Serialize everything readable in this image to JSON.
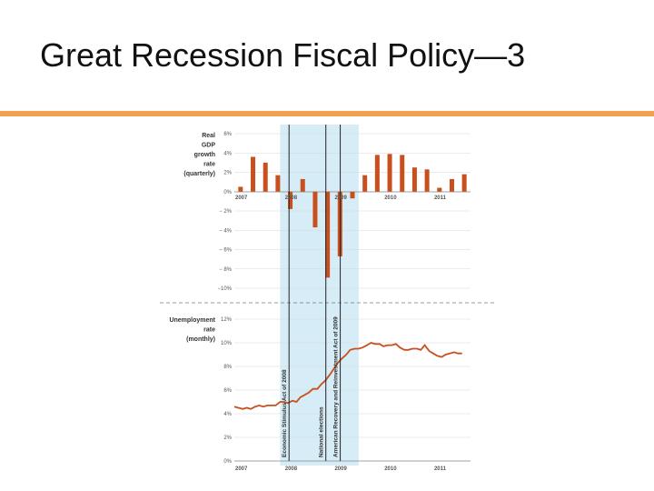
{
  "slide": {
    "title": "Great Recession Fiscal Policy—3"
  },
  "colors": {
    "accent": "#f0a050",
    "bar": "#c8501e",
    "line": "#c8501e",
    "shade": "#d6ecf6"
  },
  "chart_data": [
    {
      "type": "bar",
      "ylabel": [
        "Real",
        "GDP",
        "growth",
        "rate",
        "(quarterly)"
      ],
      "ylim": [
        -10,
        6
      ],
      "yticks": [
        "6%",
        "4%",
        "2%",
        "0%",
        "− 2%",
        "− 4%",
        "− 6%",
        "− 8%",
        "−10%"
      ],
      "xticks": [
        "2007",
        "2008",
        "2009",
        "2010",
        "2011"
      ],
      "x_start": 2007.0,
      "x_end": 2011.75,
      "recession_shade": [
        2007.92,
        2009.5
      ],
      "events": [
        {
          "label": "Economic Stimulus Act of 2008",
          "x": 2008.1
        },
        {
          "label": "National elections",
          "x": 2008.84
        },
        {
          "label": "American Recovery and Reinvestment Act of 2009",
          "x": 2009.13
        }
      ],
      "quarters": [
        "2007Q1",
        "2007Q2",
        "2007Q3",
        "2007Q4",
        "2008Q1",
        "2008Q2",
        "2008Q3",
        "2008Q4",
        "2009Q1",
        "2009Q2",
        "2009Q3",
        "2009Q4",
        "2010Q1",
        "2010Q2",
        "2010Q3",
        "2010Q4",
        "2011Q1",
        "2011Q2",
        "2011Q3"
      ],
      "values": [
        0.5,
        3.6,
        3.0,
        1.7,
        -1.8,
        1.3,
        -3.7,
        -8.9,
        -6.7,
        -0.7,
        1.7,
        3.8,
        3.9,
        3.8,
        2.5,
        2.3,
        0.4,
        1.3,
        1.8
      ],
      "grid": true
    },
    {
      "type": "line",
      "ylabel": [
        "Unemployment",
        "rate",
        "(monthly)"
      ],
      "ylim": [
        0,
        12
      ],
      "yticks": [
        "12%",
        "10%",
        "8%",
        "6%",
        "4%",
        "2%",
        "0%"
      ],
      "xticks": [
        "2007",
        "2008",
        "2009",
        "2010",
        "2011"
      ],
      "series": [
        {
          "x": [
            2007.0,
            2007.08,
            2007.17,
            2007.25,
            2007.33,
            2007.42,
            2007.5,
            2007.58,
            2007.67,
            2007.75,
            2007.83,
            2007.92,
            2008.0,
            2008.08,
            2008.17,
            2008.25,
            2008.33,
            2008.42,
            2008.5,
            2008.58,
            2008.67,
            2008.75,
            2008.83,
            2008.92,
            2009.0,
            2009.08,
            2009.17,
            2009.25,
            2009.33,
            2009.42,
            2009.5,
            2009.58,
            2009.67,
            2009.75,
            2009.83,
            2009.92,
            2010.0,
            2010.08,
            2010.17,
            2010.25,
            2010.33,
            2010.42,
            2010.5,
            2010.58,
            2010.67,
            2010.75,
            2010.83,
            2010.92,
            2011.0,
            2011.08,
            2011.17,
            2011.25,
            2011.33,
            2011.42,
            2011.5,
            2011.58
          ],
          "y": [
            4.6,
            4.5,
            4.4,
            4.5,
            4.4,
            4.6,
            4.7,
            4.6,
            4.7,
            4.7,
            4.7,
            5.0,
            5.0,
            4.9,
            5.1,
            5.0,
            5.4,
            5.6,
            5.8,
            6.1,
            6.1,
            6.5,
            6.8,
            7.3,
            7.8,
            8.3,
            8.7,
            9.0,
            9.4,
            9.5,
            9.5,
            9.6,
            9.8,
            10.0,
            9.9,
            9.9,
            9.7,
            9.8,
            9.8,
            9.9,
            9.6,
            9.4,
            9.4,
            9.5,
            9.5,
            9.4,
            9.8,
            9.3,
            9.1,
            8.9,
            8.8,
            9.0,
            9.1,
            9.2,
            9.1,
            9.1
          ]
        }
      ],
      "grid": true
    }
  ]
}
